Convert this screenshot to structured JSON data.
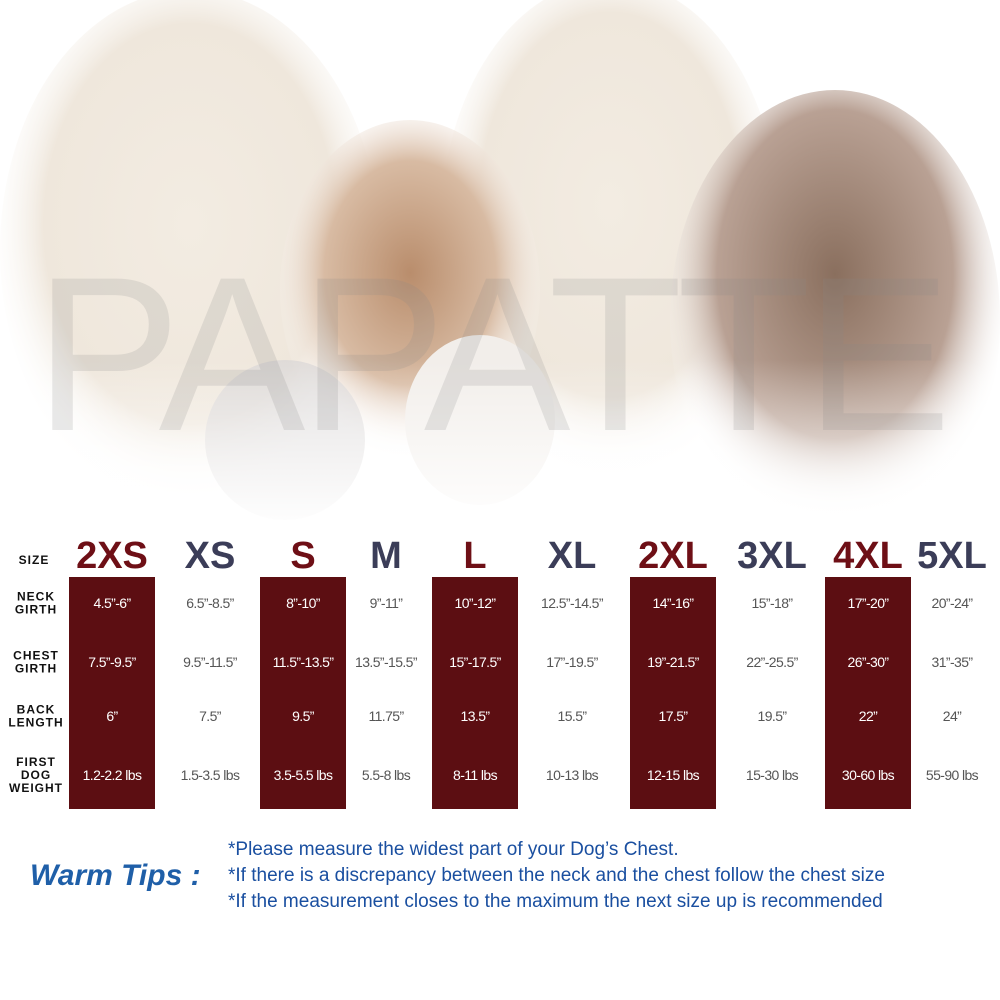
{
  "watermark": "PAPATTE",
  "table": {
    "size_label": "SIZE",
    "row_labels": [
      [
        "NECK",
        "GIRTH"
      ],
      [
        "CHEST",
        "GIRTH"
      ],
      [
        "BACK",
        "LENGTH"
      ],
      [
        "FIRST",
        "DOG",
        "WEIGHT"
      ]
    ],
    "columns": [
      {
        "size": "2XS",
        "highlight": true,
        "values": [
          "4.5”-6”",
          "7.5”-9.5”",
          "6”",
          "1.2-2.2 lbs"
        ]
      },
      {
        "size": "XS",
        "highlight": false,
        "values": [
          "6.5”-8.5”",
          "9.5”-11.5”",
          "7.5”",
          "1.5-3.5 lbs"
        ]
      },
      {
        "size": "S",
        "highlight": true,
        "values": [
          "8”-10”",
          "11.5”-13.5”",
          "9.5”",
          "3.5-5.5 lbs"
        ]
      },
      {
        "size": "M",
        "highlight": false,
        "values": [
          "9”-11”",
          "13.5”-15.5”",
          "11.75”",
          "5.5-8 lbs"
        ]
      },
      {
        "size": "L",
        "highlight": true,
        "values": [
          "10”-12”",
          "15”-17.5”",
          "13.5”",
          "8-11 lbs"
        ]
      },
      {
        "size": "XL",
        "highlight": false,
        "values": [
          "12.5”-14.5”",
          "17”-19.5”",
          "15.5”",
          "10-13 lbs"
        ]
      },
      {
        "size": "2XL",
        "highlight": true,
        "values": [
          "14”-16”",
          "19”-21.5”",
          "17.5”",
          "12-15 lbs"
        ]
      },
      {
        "size": "3XL",
        "highlight": false,
        "values": [
          "15”-18”",
          "22”-25.5”",
          "19.5”",
          "15-30 lbs"
        ]
      },
      {
        "size": "4XL",
        "highlight": true,
        "values": [
          "17”-20”",
          "26”-30”",
          "22”",
          "30-60 lbs"
        ]
      },
      {
        "size": "5XL",
        "highlight": false,
        "values": [
          "20”-24”",
          "31”-35”",
          "24”",
          "55-90 lbs"
        ]
      }
    ]
  },
  "tips": {
    "title": "Warm Tips :",
    "lines": [
      "*Please measure the widest part of your Dog’s Chest.",
      "*If there is a discrepancy between the neck and the chest  follow the chest size",
      "*If the measurement closes to the maximum the next size up is recommended"
    ]
  }
}
